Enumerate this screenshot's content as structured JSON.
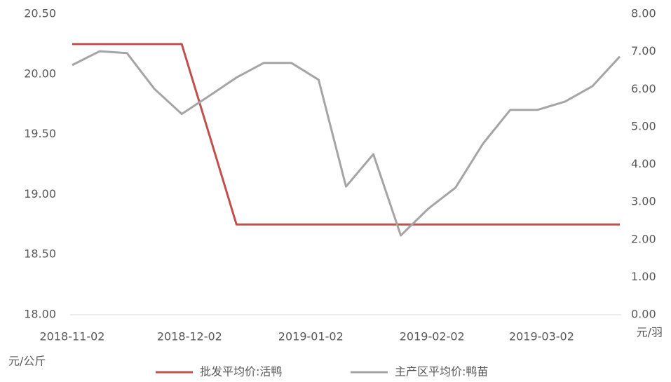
{
  "chart_data": {
    "type": "line",
    "x": [
      "2018-11-02",
      "2018-11-09",
      "2018-11-16",
      "2018-11-23",
      "2018-11-30",
      "2018-12-07",
      "2018-12-14",
      "2018-12-21",
      "2018-12-28",
      "2019-01-04",
      "2019-01-11",
      "2019-01-18",
      "2019-01-25",
      "2019-02-01",
      "2019-02-08",
      "2019-02-15",
      "2019-02-22",
      "2019-03-01",
      "2019-03-08",
      "2019-03-15",
      "2019-03-22"
    ],
    "xlim": [
      "2018-11-02",
      "2019-03-22"
    ],
    "xticks": [
      "2018-11-02",
      "2018-12-02",
      "2019-01-02",
      "2019-02-02",
      "2019-03-02"
    ],
    "series": [
      {
        "name": "批发平均价:活鸭",
        "color": "#c0504d",
        "axis": "y",
        "values": [
          20.25,
          20.25,
          20.25,
          20.25,
          20.25,
          19.5,
          18.75,
          18.75,
          18.75,
          18.75,
          18.75,
          18.75,
          18.75,
          18.75,
          18.75,
          18.75,
          18.75,
          18.75,
          18.75,
          18.75,
          18.75
        ]
      },
      {
        "name": "主产区平均价:鸭苗",
        "color": "#a5a5a5",
        "axis": "y2",
        "values": [
          6.64,
          7.01,
          6.96,
          6.01,
          5.34,
          5.82,
          6.31,
          6.7,
          6.7,
          6.25,
          3.41,
          4.27,
          2.11,
          2.82,
          3.38,
          4.55,
          5.45,
          5.45,
          5.67,
          6.08,
          6.87
        ]
      }
    ],
    "ylim": [
      18,
      20.5
    ],
    "yticks": [
      {
        "value": 18,
        "label": "18.00"
      },
      {
        "value": 18.5,
        "label": "18.50"
      },
      {
        "value": 19,
        "label": "19.00"
      },
      {
        "value": 19.5,
        "label": "19.50"
      },
      {
        "value": 20,
        "label": "20.00"
      },
      {
        "value": 20.5,
        "label": "20.50"
      }
    ],
    "y2lim": [
      0,
      8
    ],
    "y2ticks": [
      {
        "value": 0,
        "label": "0.00"
      },
      {
        "value": 1,
        "label": "1.00"
      },
      {
        "value": 2,
        "label": "2.00"
      },
      {
        "value": 3,
        "label": "3.00"
      },
      {
        "value": 4,
        "label": "4.00"
      },
      {
        "value": 5,
        "label": "5.00"
      },
      {
        "value": 6,
        "label": "6.00"
      },
      {
        "value": 7,
        "label": "7.00"
      },
      {
        "value": 8,
        "label": "8.00"
      }
    ],
    "y_label": "元/公斤",
    "y2_label": "元/羽",
    "grid": false,
    "legend": "bottom"
  }
}
